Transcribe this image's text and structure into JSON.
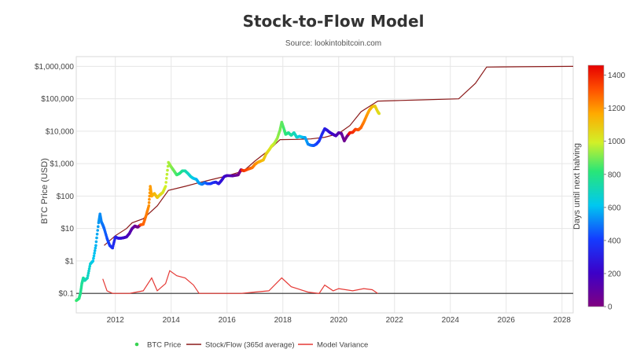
{
  "chart_data": {
    "type": "scatter",
    "title": "Stock-to-Flow Model",
    "subtitle": "Source: lookintobitcoin.com",
    "ylabel": "BTC Price (USD)",
    "xlabel": "",
    "yscale": "log",
    "ylim": [
      0.025,
      2000000
    ],
    "xlim": [
      2010.6,
      2028.4
    ],
    "y_ticks": [
      {
        "value": 0.1,
        "label": "$0.1"
      },
      {
        "value": 1,
        "label": "$1"
      },
      {
        "value": 10,
        "label": "$10"
      },
      {
        "value": 100,
        "label": "$100"
      },
      {
        "value": 1000,
        "label": "$1,000"
      },
      {
        "value": 10000,
        "label": "$10,000"
      },
      {
        "value": 100000,
        "label": "$100,000"
      },
      {
        "value": 1000000,
        "label": "$1,000,000"
      }
    ],
    "x_ticks": [
      {
        "value": 2012,
        "label": "2012"
      },
      {
        "value": 2014,
        "label": "2014"
      },
      {
        "value": 2016,
        "label": "2016"
      },
      {
        "value": 2018,
        "label": "2018"
      },
      {
        "value": 2020,
        "label": "2020"
      },
      {
        "value": 2022,
        "label": "2022"
      },
      {
        "value": 2024,
        "label": "2024"
      },
      {
        "value": 2026,
        "label": "2026"
      },
      {
        "value": 2028,
        "label": "2028"
      }
    ],
    "grid": true,
    "colorbar": {
      "label": "Days until next halving",
      "range": [
        0,
        1460
      ],
      "ticks": [
        0,
        200,
        400,
        600,
        800,
        1000,
        1200,
        1400
      ]
    },
    "legend": {
      "placement": "bottom",
      "entries": [
        "BTC Price",
        "Stock/Flow (365d average)",
        "Model Variance"
      ]
    },
    "reference_line": {
      "value": 0.1
    },
    "series": [
      {
        "name": "BTC Price",
        "kind": "scatter",
        "points": [
          {
            "x": 2010.6,
            "y": 0.06
          },
          {
            "x": 2010.7,
            "y": 0.07
          },
          {
            "x": 2010.75,
            "y": 0.1
          },
          {
            "x": 2010.8,
            "y": 0.2
          },
          {
            "x": 2010.85,
            "y": 0.3
          },
          {
            "x": 2010.9,
            "y": 0.25
          },
          {
            "x": 2011.0,
            "y": 0.3
          },
          {
            "x": 2011.1,
            "y": 0.8
          },
          {
            "x": 2011.2,
            "y": 1.0
          },
          {
            "x": 2011.3,
            "y": 3.0
          },
          {
            "x": 2011.4,
            "y": 15.0
          },
          {
            "x": 2011.45,
            "y": 28.0
          },
          {
            "x": 2011.5,
            "y": 16.0
          },
          {
            "x": 2011.55,
            "y": 13.0
          },
          {
            "x": 2011.6,
            "y": 10.0
          },
          {
            "x": 2011.7,
            "y": 5.0
          },
          {
            "x": 2011.8,
            "y": 3.0
          },
          {
            "x": 2011.9,
            "y": 2.5
          },
          {
            "x": 2012.0,
            "y": 5.5
          },
          {
            "x": 2012.1,
            "y": 5.0
          },
          {
            "x": 2012.2,
            "y": 5.0
          },
          {
            "x": 2012.3,
            "y": 5.2
          },
          {
            "x": 2012.4,
            "y": 5.5
          },
          {
            "x": 2012.5,
            "y": 7.0
          },
          {
            "x": 2012.6,
            "y": 10.0
          },
          {
            "x": 2012.7,
            "y": 12.0
          },
          {
            "x": 2012.8,
            "y": 11.0
          },
          {
            "x": 2012.9,
            "y": 13.0
          },
          {
            "x": 2013.0,
            "y": 13.5
          },
          {
            "x": 2013.1,
            "y": 25.0
          },
          {
            "x": 2013.2,
            "y": 50.0
          },
          {
            "x": 2013.25,
            "y": 200.0
          },
          {
            "x": 2013.3,
            "y": 100.0
          },
          {
            "x": 2013.4,
            "y": 120.0
          },
          {
            "x": 2013.5,
            "y": 90.0
          },
          {
            "x": 2013.6,
            "y": 110.0
          },
          {
            "x": 2013.7,
            "y": 130.0
          },
          {
            "x": 2013.8,
            "y": 200.0
          },
          {
            "x": 2013.9,
            "y": 1100.0
          },
          {
            "x": 2014.0,
            "y": 800.0
          },
          {
            "x": 2014.1,
            "y": 600.0
          },
          {
            "x": 2014.2,
            "y": 450.0
          },
          {
            "x": 2014.3,
            "y": 500.0
          },
          {
            "x": 2014.4,
            "y": 600.0
          },
          {
            "x": 2014.5,
            "y": 600.0
          },
          {
            "x": 2014.6,
            "y": 500.0
          },
          {
            "x": 2014.7,
            "y": 400.0
          },
          {
            "x": 2014.8,
            "y": 350.0
          },
          {
            "x": 2014.9,
            "y": 330.0
          },
          {
            "x": 2015.0,
            "y": 250.0
          },
          {
            "x": 2015.1,
            "y": 230.0
          },
          {
            "x": 2015.2,
            "y": 260.0
          },
          {
            "x": 2015.3,
            "y": 240.0
          },
          {
            "x": 2015.4,
            "y": 240.0
          },
          {
            "x": 2015.5,
            "y": 260.0
          },
          {
            "x": 2015.6,
            "y": 270.0
          },
          {
            "x": 2015.7,
            "y": 240.0
          },
          {
            "x": 2015.8,
            "y": 300.0
          },
          {
            "x": 2015.9,
            "y": 400.0
          },
          {
            "x": 2016.0,
            "y": 430.0
          },
          {
            "x": 2016.2,
            "y": 420.0
          },
          {
            "x": 2016.4,
            "y": 450.0
          },
          {
            "x": 2016.5,
            "y": 650.0
          },
          {
            "x": 2016.6,
            "y": 600.0
          },
          {
            "x": 2016.8,
            "y": 700.0
          },
          {
            "x": 2016.9,
            "y": 750.0
          },
          {
            "x": 2017.0,
            "y": 950.0
          },
          {
            "x": 2017.1,
            "y": 1100.0
          },
          {
            "x": 2017.2,
            "y": 1200.0
          },
          {
            "x": 2017.3,
            "y": 1300.0
          },
          {
            "x": 2017.4,
            "y": 2000.0
          },
          {
            "x": 2017.5,
            "y": 2600.0
          },
          {
            "x": 2017.6,
            "y": 3500.0
          },
          {
            "x": 2017.7,
            "y": 4300.0
          },
          {
            "x": 2017.8,
            "y": 6000.0
          },
          {
            "x": 2017.9,
            "y": 11000.0
          },
          {
            "x": 2017.96,
            "y": 19000.0
          },
          {
            "x": 2018.05,
            "y": 11000.0
          },
          {
            "x": 2018.1,
            "y": 8000.0
          },
          {
            "x": 2018.2,
            "y": 9000.0
          },
          {
            "x": 2018.3,
            "y": 7500.0
          },
          {
            "x": 2018.4,
            "y": 9000.0
          },
          {
            "x": 2018.5,
            "y": 6500.0
          },
          {
            "x": 2018.6,
            "y": 7000.0
          },
          {
            "x": 2018.7,
            "y": 6500.0
          },
          {
            "x": 2018.8,
            "y": 6400.0
          },
          {
            "x": 2018.9,
            "y": 4000.0
          },
          {
            "x": 2019.0,
            "y": 3700.0
          },
          {
            "x": 2019.1,
            "y": 3600.0
          },
          {
            "x": 2019.2,
            "y": 4000.0
          },
          {
            "x": 2019.3,
            "y": 5000.0
          },
          {
            "x": 2019.4,
            "y": 8000.0
          },
          {
            "x": 2019.5,
            "y": 12000.0
          },
          {
            "x": 2019.6,
            "y": 10500.0
          },
          {
            "x": 2019.7,
            "y": 9000.0
          },
          {
            "x": 2019.8,
            "y": 8000.0
          },
          {
            "x": 2019.9,
            "y": 7200.0
          },
          {
            "x": 2020.0,
            "y": 9000.0
          },
          {
            "x": 2020.1,
            "y": 8500.0
          },
          {
            "x": 2020.2,
            "y": 5000.0
          },
          {
            "x": 2020.3,
            "y": 7000.0
          },
          {
            "x": 2020.4,
            "y": 9000.0
          },
          {
            "x": 2020.5,
            "y": 9200.0
          },
          {
            "x": 2020.6,
            "y": 11500.0
          },
          {
            "x": 2020.7,
            "y": 11000.0
          },
          {
            "x": 2020.8,
            "y": 13000.0
          },
          {
            "x": 2020.9,
            "y": 19000.0
          },
          {
            "x": 2021.0,
            "y": 30000.0
          },
          {
            "x": 2021.1,
            "y": 45000.0
          },
          {
            "x": 2021.2,
            "y": 57000.0
          },
          {
            "x": 2021.3,
            "y": 60000.0
          },
          {
            "x": 2021.4,
            "y": 40000.0
          },
          {
            "x": 2021.45,
            "y": 35000.0
          }
        ]
      },
      {
        "name": "Stock/Flow (365d average)",
        "kind": "line",
        "color": "#8b1a1a",
        "points": [
          {
            "x": 2011.6,
            "y": 3.0
          },
          {
            "x": 2012.0,
            "y": 6.0
          },
          {
            "x": 2012.4,
            "y": 10.0
          },
          {
            "x": 2012.6,
            "y": 15.0
          },
          {
            "x": 2013.0,
            "y": 20.0
          },
          {
            "x": 2013.5,
            "y": 50.0
          },
          {
            "x": 2013.9,
            "y": 150.0
          },
          {
            "x": 2014.5,
            "y": 200.0
          },
          {
            "x": 2015.0,
            "y": 260.0
          },
          {
            "x": 2015.5,
            "y": 330.0
          },
          {
            "x": 2016.0,
            "y": 420.0
          },
          {
            "x": 2016.6,
            "y": 600.0
          },
          {
            "x": 2017.0,
            "y": 1200.0
          },
          {
            "x": 2017.5,
            "y": 2600.0
          },
          {
            "x": 2017.9,
            "y": 5500.0
          },
          {
            "x": 2018.5,
            "y": 5600.0
          },
          {
            "x": 2019.0,
            "y": 5800.0
          },
          {
            "x": 2019.5,
            "y": 6500.0
          },
          {
            "x": 2020.0,
            "y": 8500.0
          },
          {
            "x": 2020.4,
            "y": 15000.0
          },
          {
            "x": 2020.8,
            "y": 40000.0
          },
          {
            "x": 2021.4,
            "y": 85000.0
          },
          {
            "x": 2022.0,
            "y": 88000.0
          },
          {
            "x": 2023.0,
            "y": 93000.0
          },
          {
            "x": 2024.3,
            "y": 100000.0
          },
          {
            "x": 2024.9,
            "y": 300000.0
          },
          {
            "x": 2025.3,
            "y": 950000.0
          },
          {
            "x": 2026.5,
            "y": 975000.0
          },
          {
            "x": 2028.4,
            "y": 1000000.0
          }
        ]
      },
      {
        "name": "Model Variance",
        "kind": "line",
        "color": "#e53935",
        "points": [
          {
            "x": 2011.55,
            "y": 0.28
          },
          {
            "x": 2011.7,
            "y": 0.12
          },
          {
            "x": 2011.9,
            "y": 0.1
          },
          {
            "x": 2012.5,
            "y": 0.1
          },
          {
            "x": 2013.0,
            "y": 0.12
          },
          {
            "x": 2013.3,
            "y": 0.3
          },
          {
            "x": 2013.5,
            "y": 0.12
          },
          {
            "x": 2013.8,
            "y": 0.2
          },
          {
            "x": 2013.95,
            "y": 0.5
          },
          {
            "x": 2014.2,
            "y": 0.35
          },
          {
            "x": 2014.5,
            "y": 0.3
          },
          {
            "x": 2014.8,
            "y": 0.18
          },
          {
            "x": 2015.0,
            "y": 0.1
          },
          {
            "x": 2016.5,
            "y": 0.1
          },
          {
            "x": 2017.0,
            "y": 0.11
          },
          {
            "x": 2017.5,
            "y": 0.12
          },
          {
            "x": 2017.96,
            "y": 0.3
          },
          {
            "x": 2018.3,
            "y": 0.16
          },
          {
            "x": 2018.9,
            "y": 0.11
          },
          {
            "x": 2019.3,
            "y": 0.1
          },
          {
            "x": 2019.5,
            "y": 0.18
          },
          {
            "x": 2019.8,
            "y": 0.12
          },
          {
            "x": 2020.0,
            "y": 0.14
          },
          {
            "x": 2020.5,
            "y": 0.12
          },
          {
            "x": 2020.9,
            "y": 0.14
          },
          {
            "x": 2021.2,
            "y": 0.13
          },
          {
            "x": 2021.4,
            "y": 0.1
          }
        ]
      }
    ]
  }
}
